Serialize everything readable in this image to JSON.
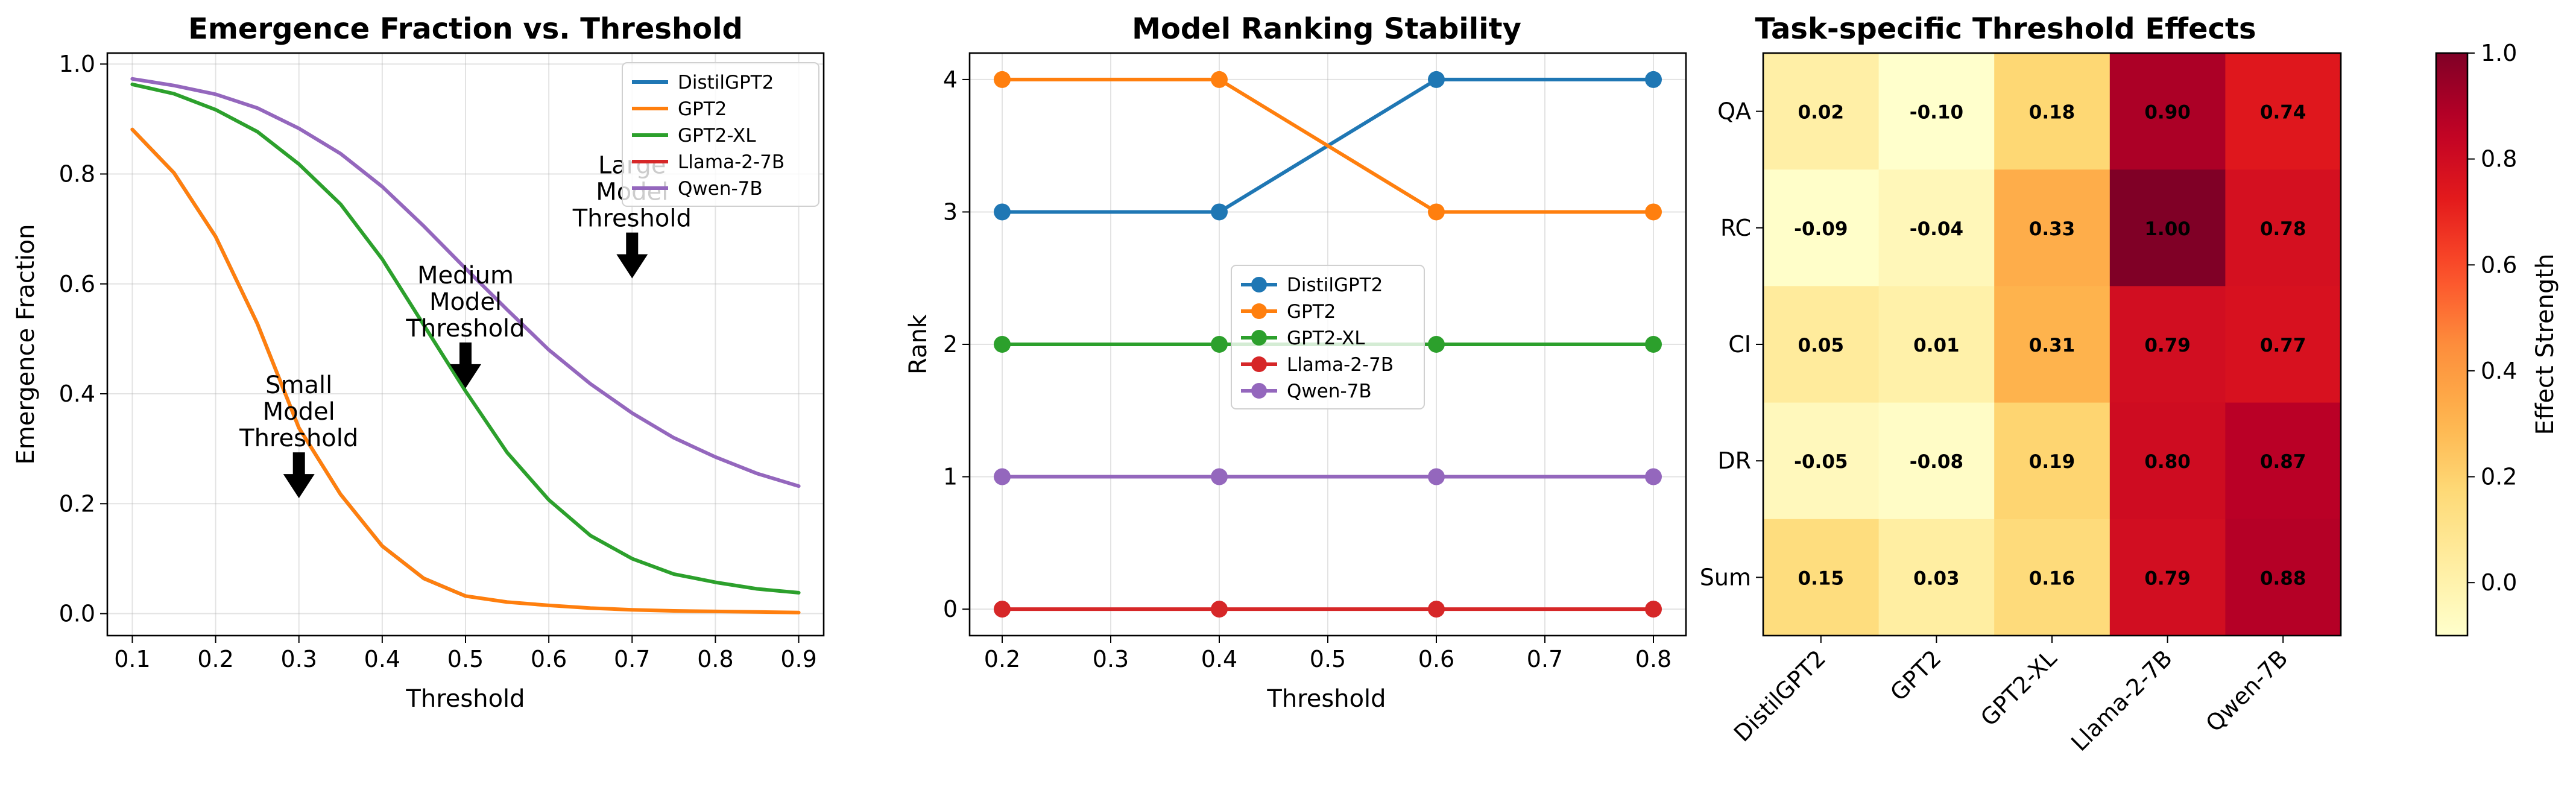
{
  "chart_data": [
    {
      "type": "line",
      "title": "Emergence Fraction vs. Threshold",
      "xlabel": "Threshold",
      "ylabel": "Emergence Fraction",
      "xlim": [
        0.07,
        0.93
      ],
      "ylim": [
        -0.04,
        1.02
      ],
      "xticks": [
        0.1,
        0.2,
        0.3,
        0.4,
        0.5,
        0.6,
        0.7,
        0.8,
        0.9
      ],
      "yticks": [
        0.0,
        0.2,
        0.4,
        0.6,
        0.8,
        1.0
      ],
      "grid": true,
      "legend": "top-right",
      "x": [
        0.1,
        0.15,
        0.2,
        0.25,
        0.3,
        0.35,
        0.4,
        0.45,
        0.5,
        0.55,
        0.6,
        0.65,
        0.7,
        0.75,
        0.8,
        0.85,
        0.9
      ],
      "series": [
        {
          "name": "DistilGPT2",
          "color": "#1f77b4",
          "values": [
            0.881,
            0.802,
            0.686,
            0.528,
            0.338,
            0.217,
            0.123,
            0.064,
            0.032,
            null,
            null,
            null,
            null,
            null,
            null,
            null,
            null
          ]
        },
        {
          "name": "GPT2",
          "color": "#ff7f0e",
          "values": [
            0.881,
            0.802,
            0.686,
            0.528,
            0.338,
            0.217,
            0.123,
            0.064,
            0.032,
            0.021,
            0.015,
            0.01,
            0.007,
            0.005,
            0.004,
            0.003,
            0.002
          ]
        },
        {
          "name": "GPT2-XL",
          "color": "#2ca02c",
          "values": [
            0.963,
            0.946,
            0.917,
            0.877,
            0.818,
            0.745,
            0.645,
            0.525,
            0.405,
            0.293,
            0.207,
            0.142,
            0.1,
            0.072,
            0.057,
            0.045,
            0.038
          ]
        },
        {
          "name": "Llama-2-7B",
          "color": "#d62728",
          "values": [
            null,
            null,
            null,
            null,
            null,
            null,
            null,
            null,
            null,
            null,
            null,
            null,
            null,
            null,
            null,
            null,
            null
          ]
        },
        {
          "name": "Qwen-7B",
          "color": "#9467bd",
          "values": [
            0.973,
            0.961,
            0.945,
            0.92,
            0.883,
            0.837,
            0.777,
            0.705,
            0.628,
            0.553,
            0.48,
            0.418,
            0.365,
            0.32,
            0.285,
            0.255,
            0.232
          ]
        }
      ],
      "annotations": [
        {
          "lines": [
            "Small",
            "Model",
            "Threshold"
          ],
          "x": 0.3,
          "y": 0.21
        },
        {
          "lines": [
            "Medium",
            "Model",
            "Threshold"
          ],
          "x": 0.5,
          "y": 0.41
        },
        {
          "lines": [
            "Large",
            "Model",
            "Threshold"
          ],
          "x": 0.7,
          "y": 0.61
        }
      ]
    },
    {
      "type": "line",
      "title": "Model Ranking Stability",
      "xlabel": "Threshold",
      "ylabel": "Rank",
      "xlim": [
        0.17,
        0.83
      ],
      "ylim": [
        -0.2,
        4.2
      ],
      "xticks": [
        0.2,
        0.3,
        0.4,
        0.5,
        0.6,
        0.7,
        0.8
      ],
      "yticks": [
        0,
        1,
        2,
        3,
        4
      ],
      "grid": true,
      "legend": "center",
      "x": [
        0.2,
        0.4,
        0.6,
        0.8
      ],
      "series": [
        {
          "name": "DistilGPT2",
          "color": "#1f77b4",
          "values": [
            3,
            3,
            4,
            4
          ]
        },
        {
          "name": "GPT2",
          "color": "#ff7f0e",
          "values": [
            4,
            4,
            3,
            3
          ]
        },
        {
          "name": "GPT2-XL",
          "color": "#2ca02c",
          "values": [
            2,
            2,
            2,
            2
          ]
        },
        {
          "name": "Llama-2-7B",
          "color": "#d62728",
          "values": [
            0,
            0,
            0,
            0
          ]
        },
        {
          "name": "Qwen-7B",
          "color": "#9467bd",
          "values": [
            1,
            1,
            1,
            1
          ]
        }
      ]
    },
    {
      "type": "heatmap",
      "title": "Task-specific Threshold Effects",
      "rows": [
        "QA",
        "RC",
        "CI",
        "DR",
        "Sum"
      ],
      "columns": [
        "DistilGPT2",
        "GPT2",
        "GPT2-XL",
        "Llama-2-7B",
        "Qwen-7B"
      ],
      "values": [
        [
          0.02,
          -0.1,
          0.18,
          0.9,
          0.74
        ],
        [
          -0.09,
          -0.04,
          0.33,
          1.0,
          0.78
        ],
        [
          0.05,
          0.01,
          0.31,
          0.79,
          0.77
        ],
        [
          -0.05,
          -0.08,
          0.19,
          0.8,
          0.87
        ],
        [
          0.15,
          0.03,
          0.16,
          0.79,
          0.88
        ]
      ],
      "colormap": "YlOrRd",
      "vmin": -0.1,
      "vmax": 1.0,
      "colorbar_label": "Effect Strength",
      "colorbar_ticks": [
        0.0,
        0.2,
        0.4,
        0.6,
        0.8,
        1.0
      ]
    }
  ]
}
